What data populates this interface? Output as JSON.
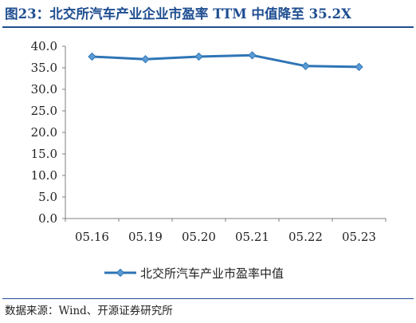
{
  "figure": {
    "title": "图23：北交所汽车产业企业市盈率 TTM 中值降至 35.2X",
    "source": "数据来源：Wind、开源证券研究所"
  },
  "chart_data": {
    "type": "line",
    "categories": [
      "05.16",
      "05.19",
      "05.20",
      "05.21",
      "05.22",
      "05.23"
    ],
    "series": [
      {
        "name": "北交所汽车产业市盈率中值",
        "values": [
          37.6,
          37.0,
          37.6,
          37.9,
          35.4,
          35.2
        ]
      }
    ],
    "ylim": [
      0,
      40
    ],
    "yticks": [
      "0.0",
      "5.0",
      "10.0",
      "15.0",
      "20.0",
      "25.0",
      "30.0",
      "35.0",
      "40.0"
    ],
    "xlabel": "",
    "ylabel": "",
    "grid": false,
    "legend_position": "bottom",
    "colors": {
      "line": "#2e75b6",
      "marker": "#5b9bd5",
      "axis": "#7f7f7f",
      "title": "#1f4e91"
    },
    "marker": "diamond"
  }
}
